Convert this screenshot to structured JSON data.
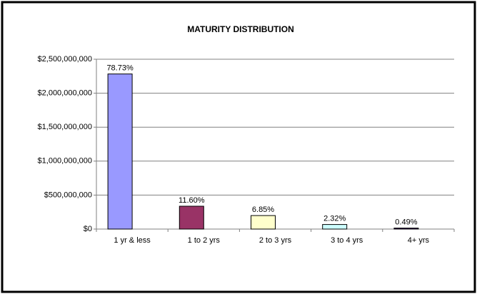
{
  "chart_data": {
    "type": "bar",
    "title": "MATURITY DISTRIBUTION",
    "categories": [
      "1 yr & less",
      "1 to 2 yrs",
      "2 to 3 yrs",
      "3 to 4 yrs",
      "4+ yrs"
    ],
    "values": [
      2283000000,
      336400000,
      198650000,
      67280000,
      14210000
    ],
    "percent_labels": [
      "78.73%",
      "11.60%",
      "6.85%",
      "2.32%",
      "0.49%"
    ],
    "colors": [
      "#9999ff",
      "#993366",
      "#ffffcc",
      "#ccffff",
      "#330066"
    ],
    "ylim": [
      0,
      2500000000
    ],
    "yticks": [
      {
        "value": 0,
        "label": "$0"
      },
      {
        "value": 500000000,
        "label": "$500,000,000"
      },
      {
        "value": 1000000000,
        "label": "$1,000,000,000"
      },
      {
        "value": 1500000000,
        "label": "$1,500,000,000"
      },
      {
        "value": 2000000000,
        "label": "$2,000,000,000"
      },
      {
        "value": 2500000000,
        "label": "$2,500,000,000"
      }
    ],
    "grid": true
  }
}
